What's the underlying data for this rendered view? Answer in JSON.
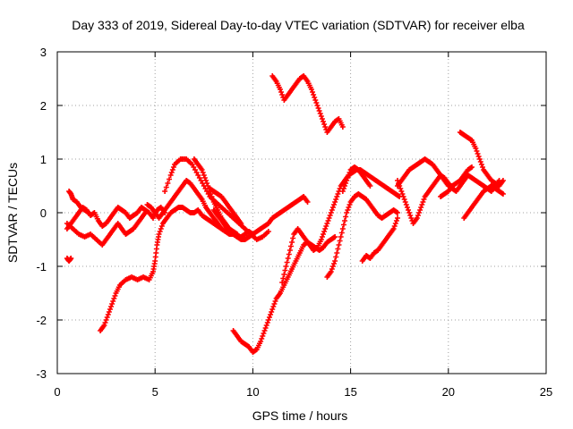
{
  "chart_data": {
    "type": "scatter",
    "title": "Day 333 of 2019, Sidereal Day-to-day VTEC variation (SDTVAR) for receiver elba",
    "xlabel": "GPS time / hours",
    "ylabel": "SDTVAR / TECUs",
    "xlim": [
      0,
      25
    ],
    "ylim": [
      -3,
      3
    ],
    "xticks": [
      "0",
      "5",
      "10",
      "15",
      "20",
      "25"
    ],
    "yticks": [
      "-3",
      "-2",
      "-1",
      "0",
      "1",
      "2",
      "3"
    ],
    "grid": true,
    "marker": "+",
    "series": [
      {
        "name": "SDTVAR",
        "color": "#ff0000",
        "tracks": [
          {
            "x": [
              0.5,
              0.7,
              0.9,
              1.1,
              1.3,
              1.5,
              1.7,
              1.9,
              2.1,
              2.3,
              2.5,
              2.7,
              2.9,
              3.1,
              3.3,
              3.5,
              3.7,
              3.9,
              4.1,
              4.3,
              4.5,
              4.7,
              4.9,
              5.1,
              5.3,
              5.5
            ],
            "y": [
              -0.3,
              -0.2,
              -0.1,
              0.0,
              0.1,
              0.05,
              -0.05,
              0.0,
              -0.15,
              -0.25,
              -0.2,
              -0.1,
              0.0,
              0.1,
              0.05,
              0.0,
              -0.1,
              -0.05,
              0.0,
              0.1,
              0.05,
              0.0,
              -0.1,
              0.05,
              0.1,
              0.0
            ]
          },
          {
            "x": [
              0.5,
              0.8,
              1.1,
              1.4,
              1.7,
              2.0,
              2.3,
              2.5,
              2.7,
              2.9,
              3.1,
              3.3,
              3.5,
              3.7,
              3.9,
              4.1,
              4.3,
              4.5
            ],
            "y": [
              -0.2,
              -0.3,
              -0.4,
              -0.45,
              -0.4,
              -0.5,
              -0.6,
              -0.5,
              -0.4,
              -0.3,
              -0.2,
              -0.3,
              -0.4,
              -0.35,
              -0.3,
              -0.2,
              -0.1,
              0.0
            ]
          },
          {
            "x": [
              0.6,
              0.7,
              0.8,
              1.0,
              1.2,
              1.4,
              1.6
            ],
            "y": [
              0.4,
              0.35,
              0.25,
              0.2,
              0.1,
              0.05,
              0.0
            ]
          },
          {
            "x": [
              0.5,
              0.6,
              0.7
            ],
            "y": [
              -0.85,
              -0.9,
              -0.85
            ]
          },
          {
            "x": [
              2.2,
              2.4,
              2.6,
              2.8,
              3.0,
              3.2,
              3.5,
              3.8,
              4.1,
              4.4,
              4.7,
              4.9,
              5.0,
              5.1,
              5.2,
              5.4,
              5.6,
              5.8,
              6.0,
              6.2,
              6.4,
              6.6,
              6.8,
              7.0,
              7.2,
              7.4,
              7.6,
              7.8,
              8.0,
              8.2,
              8.4,
              8.6,
              8.8,
              9.0,
              9.2,
              9.4,
              9.6,
              9.8,
              10.0,
              10.2,
              10.4,
              10.6,
              10.8,
              11.0,
              11.2,
              11.4,
              11.6,
              11.8,
              12.0,
              12.2,
              12.4,
              12.6,
              12.8
            ],
            "y": [
              -2.2,
              -2.1,
              -1.9,
              -1.7,
              -1.5,
              -1.35,
              -1.25,
              -1.2,
              -1.25,
              -1.2,
              -1.25,
              -1.1,
              -0.9,
              -0.6,
              -0.4,
              -0.2,
              -0.1,
              0.0,
              0.05,
              0.1,
              0.1,
              0.05,
              0.0,
              0.0,
              0.05,
              -0.05,
              -0.1,
              -0.15,
              -0.2,
              -0.25,
              -0.3,
              -0.35,
              -0.4,
              -0.4,
              -0.45,
              -0.45,
              -0.4,
              -0.35,
              -0.4,
              -0.35,
              -0.3,
              -0.25,
              -0.2,
              -0.1,
              -0.05,
              0.0,
              0.05,
              0.1,
              0.15,
              0.2,
              0.25,
              0.3,
              0.2
            ]
          },
          {
            "x": [
              4.6,
              4.8,
              5.0,
              5.2,
              5.4,
              5.6,
              5.8,
              6.0,
              6.2,
              6.4,
              6.6,
              6.8,
              7.0,
              7.2,
              7.4,
              7.6,
              7.8,
              8.0,
              8.2,
              8.4,
              8.6
            ],
            "y": [
              0.15,
              0.1,
              0.0,
              -0.1,
              0.0,
              0.1,
              0.2,
              0.3,
              0.4,
              0.5,
              0.6,
              0.55,
              0.45,
              0.35,
              0.25,
              0.1,
              0.0,
              -0.1,
              -0.2,
              -0.3,
              -0.35
            ]
          },
          {
            "x": [
              5.5,
              5.8,
              6.0,
              6.3,
              6.6,
              6.9,
              7.2,
              7.5,
              7.8,
              8.1,
              8.4,
              8.7,
              9.0,
              9.3,
              9.6,
              9.9,
              10.2,
              10.5,
              10.8
            ],
            "y": [
              0.4,
              0.7,
              0.9,
              1.0,
              1.0,
              0.9,
              0.7,
              0.5,
              0.3,
              0.2,
              0.1,
              0.0,
              -0.1,
              -0.2,
              -0.3,
              -0.4,
              -0.5,
              -0.45,
              -0.35
            ]
          },
          {
            "x": [
              7.0,
              7.2,
              7.4,
              7.6,
              7.8,
              8.0,
              8.2,
              8.4,
              8.6,
              8.8,
              9.0,
              9.2
            ],
            "y": [
              1.0,
              0.9,
              0.8,
              0.6,
              0.4,
              0.2,
              0.05,
              -0.1,
              -0.2,
              -0.3,
              -0.35,
              -0.4
            ]
          },
          {
            "x": [
              7.8,
              8.0,
              8.2,
              8.4,
              8.6,
              8.8,
              9.0,
              9.2,
              9.4
            ],
            "y": [
              0.45,
              0.4,
              0.35,
              0.3,
              0.2,
              0.1,
              0.0,
              -0.1,
              -0.2
            ]
          },
          {
            "x": [
              8.0,
              8.2,
              8.4,
              8.6,
              8.8,
              9.0,
              9.2,
              9.4,
              9.6,
              9.8,
              10.0
            ],
            "y": [
              0.05,
              -0.05,
              -0.15,
              -0.25,
              -0.35,
              -0.4,
              -0.45,
              -0.5,
              -0.5,
              -0.45,
              -0.4
            ]
          },
          {
            "x": [
              9.0,
              9.2,
              9.4,
              9.6,
              9.8,
              10.0,
              10.2,
              10.4,
              10.6,
              10.8,
              11.0,
              11.2,
              11.4,
              11.6,
              11.8,
              12.0,
              12.2,
              12.4,
              12.6,
              12.8,
              13.0,
              13.2,
              13.4,
              13.6,
              13.8,
              14.0,
              14.2
            ],
            "y": [
              -2.2,
              -2.3,
              -2.4,
              -2.45,
              -2.5,
              -2.6,
              -2.55,
              -2.4,
              -2.2,
              -2.0,
              -1.8,
              -1.6,
              -1.5,
              -1.35,
              -1.2,
              -1.05,
              -0.9,
              -0.75,
              -0.6,
              -0.55,
              -0.6,
              -0.65,
              -0.7,
              -0.65,
              -0.55,
              -0.5,
              -0.45
            ]
          },
          {
            "x": [
              11.0,
              11.2,
              11.4,
              11.6,
              11.8,
              12.0,
              12.2,
              12.4,
              12.6,
              12.8,
              13.0,
              13.2,
              13.4,
              13.6,
              13.8,
              14.0,
              14.2,
              14.4,
              14.6
            ],
            "y": [
              2.55,
              2.45,
              2.3,
              2.1,
              2.2,
              2.3,
              2.4,
              2.5,
              2.55,
              2.45,
              2.3,
              2.1,
              1.9,
              1.7,
              1.5,
              1.6,
              1.7,
              1.75,
              1.6
            ]
          },
          {
            "x": [
              11.5,
              11.7,
              11.9,
              12.1,
              12.3,
              12.5,
              12.7,
              12.9,
              13.1,
              13.3,
              13.5,
              13.7,
              13.9,
              14.1,
              14.3,
              14.5,
              14.7,
              14.9,
              15.1,
              15.3,
              15.5,
              15.7,
              15.9,
              16.1,
              16.3,
              16.5,
              16.7,
              16.9,
              17.1,
              17.3,
              17.5
            ],
            "y": [
              -1.3,
              -1.0,
              -0.7,
              -0.4,
              -0.3,
              -0.4,
              -0.5,
              -0.6,
              -0.7,
              -0.65,
              -0.5,
              -0.3,
              -0.1,
              0.1,
              0.3,
              0.5,
              0.6,
              0.7,
              0.75,
              0.8,
              0.8,
              0.75,
              0.7,
              0.65,
              0.6,
              0.55,
              0.5,
              0.45,
              0.4,
              0.35,
              0.3
            ]
          },
          {
            "x": [
              13.8,
              14.0,
              14.2,
              14.4,
              14.6,
              14.8,
              15.0,
              15.2,
              15.4,
              15.6,
              15.8,
              16.0,
              16.2,
              16.4,
              16.6,
              16.8,
              17.0,
              17.2,
              17.4
            ],
            "y": [
              -1.2,
              -1.1,
              -0.9,
              -0.6,
              -0.3,
              0.0,
              0.2,
              0.3,
              0.35,
              0.3,
              0.25,
              0.15,
              0.05,
              -0.05,
              -0.1,
              -0.05,
              0.0,
              0.05,
              0.0
            ]
          },
          {
            "x": [
              15.6,
              15.8,
              16.0,
              16.2,
              16.4,
              16.6,
              16.8,
              17.0,
              17.2,
              17.4
            ],
            "y": [
              -0.9,
              -0.8,
              -0.85,
              -0.75,
              -0.7,
              -0.6,
              -0.5,
              -0.4,
              -0.3,
              -0.1
            ]
          },
          {
            "x": [
              14.6,
              14.8,
              15.0,
              15.2,
              15.4,
              15.6,
              15.8,
              16.0
            ],
            "y": [
              0.4,
              0.6,
              0.8,
              0.85,
              0.8,
              0.7,
              0.6,
              0.5
            ]
          },
          {
            "x": [
              17.4,
              17.6,
              17.8,
              18.0,
              18.2,
              18.4,
              18.6,
              18.8,
              19.0,
              19.2,
              19.4,
              19.6,
              19.8,
              20.0,
              20.2,
              20.4,
              20.6,
              20.8,
              21.0,
              21.2
            ],
            "y": [
              0.5,
              0.6,
              0.7,
              0.8,
              0.85,
              0.9,
              0.95,
              1.0,
              0.95,
              0.9,
              0.8,
              0.7,
              0.6,
              0.5,
              0.5,
              0.55,
              0.6,
              0.7,
              0.8,
              0.85
            ]
          },
          {
            "x": [
              17.4,
              17.6,
              17.8,
              18.0,
              18.2,
              18.4,
              18.6,
              18.8,
              19.0,
              19.2,
              19.4,
              19.6,
              19.8,
              20.0,
              20.2,
              20.4,
              20.6,
              20.8,
              21.0,
              21.2,
              21.4,
              21.6,
              21.8,
              22.0,
              22.2,
              22.4,
              22.6
            ],
            "y": [
              0.6,
              0.4,
              0.2,
              0.0,
              -0.2,
              -0.1,
              0.1,
              0.3,
              0.4,
              0.5,
              0.6,
              0.7,
              0.65,
              0.55,
              0.45,
              0.4,
              0.5,
              0.6,
              0.7,
              0.65,
              0.6,
              0.55,
              0.5,
              0.45,
              0.4,
              0.5,
              0.6
            ]
          },
          {
            "x": [
              20.6,
              20.8,
              21.0,
              21.2,
              21.4,
              21.6,
              21.8,
              22.0,
              22.2,
              22.4,
              22.6,
              22.8
            ],
            "y": [
              1.5,
              1.45,
              1.4,
              1.35,
              1.2,
              1.0,
              0.8,
              0.7,
              0.6,
              0.55,
              0.5,
              0.6
            ]
          },
          {
            "x": [
              20.8,
              21.0,
              21.2,
              21.4,
              21.6,
              21.8,
              22.0,
              22.2,
              22.4,
              22.6,
              22.8
            ],
            "y": [
              -0.1,
              0.0,
              0.1,
              0.2,
              0.3,
              0.4,
              0.45,
              0.5,
              0.45,
              0.4,
              0.35
            ]
          },
          {
            "x": [
              19.6,
              19.8,
              20.0,
              20.2
            ],
            "y": [
              0.3,
              0.35,
              0.4,
              0.5
            ]
          }
        ]
      }
    ]
  }
}
